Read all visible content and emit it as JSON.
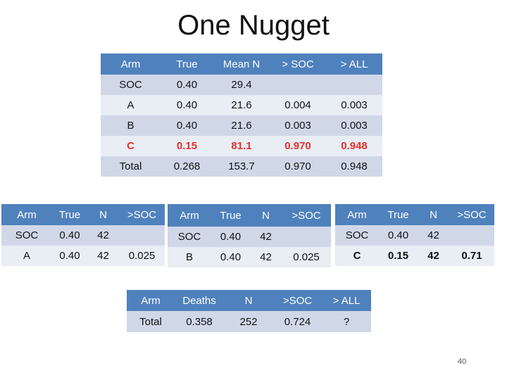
{
  "title": "One Nugget",
  "main_table": {
    "headers": [
      "Arm",
      "True",
      "Mean N",
      "> SOC",
      "> ALL"
    ],
    "rows": [
      [
        "SOC",
        "0.40",
        "29.4",
        "",
        ""
      ],
      [
        "A",
        "0.40",
        "21.6",
        "0.004",
        "0.003"
      ],
      [
        "B",
        "0.40",
        "21.6",
        "0.003",
        "0.003"
      ],
      [
        "C",
        "0.15",
        "81.1",
        "0.970",
        "0.948"
      ],
      [
        "Total",
        "0.268",
        "153.7",
        "0.970",
        "0.948"
      ]
    ]
  },
  "table_a": {
    "headers": [
      "Arm",
      "True",
      "N",
      ">SOC"
    ],
    "rows": [
      [
        "SOC",
        "0.40",
        "42",
        ""
      ],
      [
        "A",
        "0.40",
        "42",
        "0.025"
      ]
    ]
  },
  "table_b": {
    "headers": [
      "Arm",
      "True",
      "N",
      ">SOC"
    ],
    "rows": [
      [
        "SOC",
        "0.40",
        "42",
        ""
      ],
      [
        "B",
        "0.40",
        "42",
        "0.025"
      ]
    ]
  },
  "table_c": {
    "headers": [
      "Arm",
      "True",
      "N",
      ">SOC"
    ],
    "rows": [
      [
        "SOC",
        "0.40",
        "42",
        ""
      ],
      [
        "C",
        "0.15",
        "42",
        "0.71"
      ]
    ]
  },
  "total_table": {
    "headers": [
      "Arm",
      "Deaths",
      "N",
      ">SOC",
      "> ALL"
    ],
    "rows": [
      [
        "Total",
        "0.358",
        "252",
        "0.724",
        "?"
      ]
    ]
  },
  "page_number": "40",
  "colors": {
    "header_bg": "#4f81bd",
    "row_dark": "#d0d8e8",
    "row_light": "#e9edf4",
    "highlight_text": "#e4312b"
  }
}
